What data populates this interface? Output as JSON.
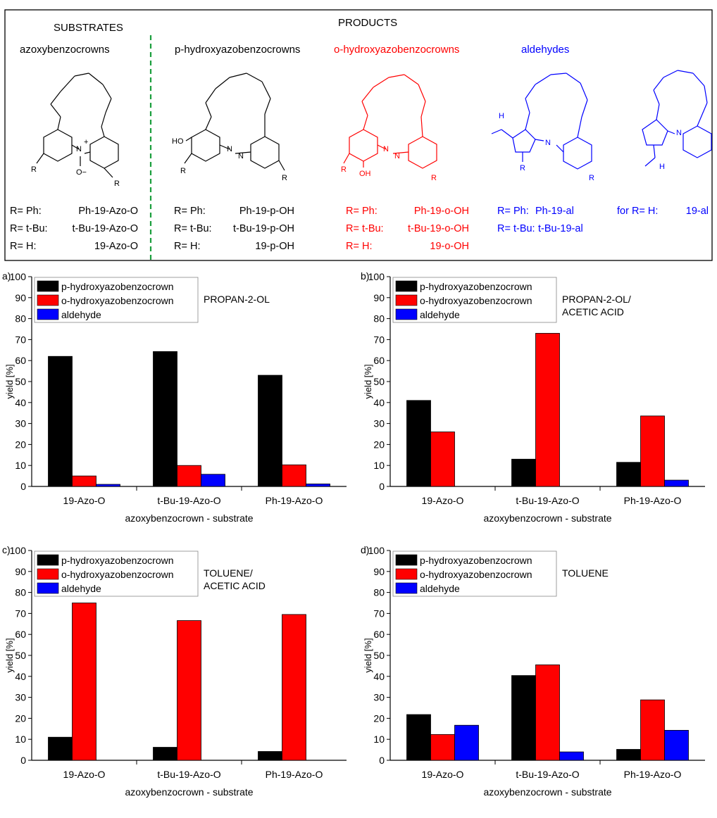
{
  "scheme": {
    "substrates_heading": "SUBSTRATES",
    "products_heading": "PRODUCTS",
    "columns": [
      {
        "id": "azoxy",
        "heading": "azoxybenzocrowns",
        "color": "#000000",
        "rows": [
          {
            "r": "R= Ph:",
            "name": "Ph-19-Azo-O"
          },
          {
            "r": "R= t-Bu:",
            "name": "t-Bu-19-Azo-O"
          },
          {
            "r": "R= H:",
            "name": "19-Azo-O"
          }
        ]
      },
      {
        "id": "p-hydroxy",
        "heading": "p-hydroxyazobenzocrowns",
        "color": "#000000",
        "rows": [
          {
            "r": "R= Ph:",
            "name": "Ph-19-p-OH"
          },
          {
            "r": "R= t-Bu:",
            "name": "t-Bu-19-p-OH"
          },
          {
            "r": "R= H:",
            "name": "19-p-OH"
          }
        ]
      },
      {
        "id": "o-hydroxy",
        "heading": "o-hydroxyazobenzocrowns",
        "color": "#ff0000",
        "rows": [
          {
            "r": "R= Ph:",
            "name": "Ph-19-o-OH"
          },
          {
            "r": "R= t-Bu:",
            "name": "t-Bu-19-o-OH"
          },
          {
            "r": "R= H:",
            "name": "19-o-OH"
          }
        ]
      },
      {
        "id": "aldehydes",
        "heading": "aldehydes",
        "color": "#0000ff",
        "rows": [
          {
            "r": "R= Ph:",
            "name": "Ph-19-al"
          },
          {
            "r": "R= t-Bu:",
            "name": "t-Bu-19-al"
          }
        ],
        "extra": {
          "r": "for R= H:",
          "name": "19-al"
        }
      }
    ],
    "structure_labels": {
      "azoxy": {
        "o_minus": "O−",
        "plus": "+",
        "n": "N",
        "r": "R"
      },
      "p": {
        "ho": "HO",
        "n": "N",
        "r": "R"
      },
      "o": {
        "oh": "OH",
        "n": "N",
        "r": "R"
      },
      "al": {
        "h": "H",
        "nh": "N",
        "r": "R"
      }
    }
  },
  "series_colors": [
    "#000000",
    "#ff0000",
    "#0000ff"
  ],
  "chart_data": [
    {
      "panel": "a)",
      "type": "bar",
      "categories": [
        "19-Azo-O",
        "t-Bu-19-Azo-O",
        "Ph-19-Azo-O"
      ],
      "series": [
        {
          "name": "p-hydroxyazobenzocrown",
          "values": [
            62,
            64.3,
            53
          ]
        },
        {
          "name": "o-hydroxyazobenzocrown",
          "values": [
            5,
            10,
            10.3
          ]
        },
        {
          "name": "aldehyde",
          "values": [
            1,
            5.8,
            1.2
          ]
        }
      ],
      "annotation": [
        "PROPAN-2-OL"
      ],
      "xlabel": "azoxybenzocrown - substrate",
      "ylabel": "yield [%]",
      "ylim": [
        0,
        100
      ],
      "yticks": [
        0,
        10,
        20,
        30,
        40,
        50,
        60,
        70,
        80,
        90,
        100
      ],
      "legend": "top-left",
      "grid": false
    },
    {
      "panel": "b)",
      "type": "bar",
      "categories": [
        "19-Azo-O",
        "t-Bu-19-Azo-O",
        "Ph-19-Azo-O"
      ],
      "series": [
        {
          "name": "p-hydroxyazobenzocrown",
          "values": [
            41,
            13,
            11.5
          ]
        },
        {
          "name": "o-hydroxyazobenzocrown",
          "values": [
            26,
            73,
            33.6
          ]
        },
        {
          "name": "aldehyde",
          "values": [
            0,
            0,
            3
          ]
        }
      ],
      "annotation": [
        "PROPAN-2-OL/",
        "ACETIC ACID"
      ],
      "xlabel": "azoxybenzocrown - substrate",
      "ylabel": "yield [%]",
      "ylim": [
        0,
        100
      ],
      "yticks": [
        0,
        10,
        20,
        30,
        40,
        50,
        60,
        70,
        80,
        90,
        100
      ],
      "legend": "top-left",
      "grid": false
    },
    {
      "panel": "c)",
      "type": "bar",
      "categories": [
        "19-Azo-O",
        "t-Bu-19-Azo-O",
        "Ph-19-Azo-O"
      ],
      "series": [
        {
          "name": "p-hydroxyazobenzocrown",
          "values": [
            11,
            6.2,
            4.2
          ]
        },
        {
          "name": "o-hydroxyazobenzocrown",
          "values": [
            75,
            66.6,
            69.5
          ]
        },
        {
          "name": "aldehyde",
          "values": [
            0,
            0,
            0
          ]
        }
      ],
      "annotation": [
        "TOLUENE/",
        "ACETIC ACID"
      ],
      "xlabel": "azoxybenzocrown - substrate",
      "ylabel": "yield [%]",
      "ylim": [
        0,
        100
      ],
      "yticks": [
        0,
        10,
        20,
        30,
        40,
        50,
        60,
        70,
        80,
        90,
        100
      ],
      "legend": "top-left",
      "grid": false
    },
    {
      "panel": "d)",
      "type": "bar",
      "categories": [
        "19-Azo-O",
        "t-Bu-19-Azo-O",
        "Ph-19-Azo-O"
      ],
      "series": [
        {
          "name": "p-hydroxyazobenzocrown",
          "values": [
            21.8,
            40.4,
            5.2
          ]
        },
        {
          "name": "o-hydroxyazobenzocrown",
          "values": [
            12.3,
            45.5,
            28.8
          ]
        },
        {
          "name": "aldehyde",
          "values": [
            16.7,
            4,
            14.3
          ]
        }
      ],
      "annotation": [
        "TOLUENE"
      ],
      "xlabel": "azoxybenzocrown - substrate",
      "ylabel": "yield [%]",
      "ylim": [
        0,
        100
      ],
      "yticks": [
        0,
        10,
        20,
        30,
        40,
        50,
        60,
        70,
        80,
        90,
        100
      ],
      "legend": "top-left",
      "grid": false
    }
  ]
}
